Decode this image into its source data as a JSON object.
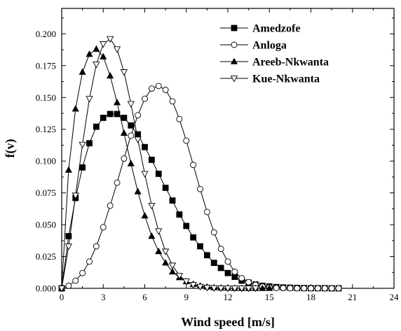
{
  "chart_data": {
    "type": "line",
    "xlabel": "Wind speed [m/s]",
    "ylabel": "f(v)",
    "xlim": [
      0,
      24
    ],
    "ylim": [
      0,
      0.22
    ],
    "xticks": [
      "0",
      "3",
      "6",
      "9",
      "12",
      "15",
      "18",
      "21",
      "24"
    ],
    "yticks": [
      "0.000",
      "0.025",
      "0.050",
      "0.075",
      "0.100",
      "0.125",
      "0.150",
      "0.175",
      "0.200"
    ],
    "legend_position": "top-right",
    "grid": false,
    "colors": {
      "line": "#000000",
      "marker": "#000000"
    },
    "series": [
      {
        "name": "Amedzofe",
        "marker": "filled-square",
        "x": [
          0,
          0.5,
          1,
          1.5,
          2,
          2.5,
          3,
          3.5,
          4,
          4.5,
          5,
          5.5,
          6,
          6.5,
          7,
          7.5,
          8,
          8.5,
          9,
          9.5,
          10,
          10.5,
          11,
          11.5,
          12,
          12.5,
          13,
          13.5,
          14,
          14.5,
          15,
          15.5,
          16,
          16.5,
          17,
          17.5,
          18,
          18.5,
          19,
          19.5,
          20
        ],
        "y": [
          0,
          0.041,
          0.071,
          0.095,
          0.114,
          0.127,
          0.134,
          0.137,
          0.137,
          0.134,
          0.128,
          0.121,
          0.111,
          0.101,
          0.09,
          0.079,
          0.069,
          0.058,
          0.049,
          0.04,
          0.033,
          0.026,
          0.02,
          0.016,
          0.012,
          0.009,
          0.006,
          0.0045,
          0.003,
          0.002,
          0.0015,
          0.001,
          0.0007,
          0.0005,
          0.0003,
          0.0002,
          0.0001,
          0.0001,
          0.0001,
          0,
          0
        ]
      },
      {
        "name": "Anloga",
        "marker": "open-circle",
        "x": [
          0,
          0.5,
          1,
          1.5,
          2,
          2.5,
          3,
          3.5,
          4,
          4.5,
          5,
          5.5,
          6,
          6.5,
          7,
          7.5,
          8,
          8.5,
          9,
          9.5,
          10,
          10.5,
          11,
          11.5,
          12,
          12.5,
          13,
          13.5,
          14,
          14.5,
          15,
          15.5,
          16,
          16.5,
          17,
          17.5,
          18,
          18.5,
          19,
          19.5,
          20
        ],
        "y": [
          0,
          0.002,
          0.006,
          0.012,
          0.021,
          0.033,
          0.048,
          0.065,
          0.083,
          0.102,
          0.12,
          0.136,
          0.149,
          0.157,
          0.159,
          0.156,
          0.147,
          0.133,
          0.116,
          0.097,
          0.078,
          0.06,
          0.044,
          0.031,
          0.021,
          0.013,
          0.008,
          0.0048,
          0.0027,
          0.0014,
          0.0007,
          0.0003,
          0.0002,
          0.0001,
          0,
          0,
          0,
          0,
          0,
          0,
          0
        ]
      },
      {
        "name": "Areeb-Nkwanta",
        "marker": "filled-triangle-up",
        "x": [
          0,
          0.5,
          1,
          1.5,
          2,
          2.5,
          3,
          3.5,
          4,
          4.5,
          5,
          5.5,
          6,
          6.5,
          7,
          7.5,
          8,
          8.5,
          9,
          9.5,
          10,
          10.5,
          11,
          11.5,
          12,
          12.5,
          13,
          13.5,
          14,
          14.5,
          15
        ],
        "y": [
          0,
          0.093,
          0.141,
          0.17,
          0.184,
          0.188,
          0.182,
          0.167,
          0.146,
          0.122,
          0.098,
          0.076,
          0.057,
          0.041,
          0.029,
          0.02,
          0.013,
          0.0085,
          0.0053,
          0.0032,
          0.0019,
          0.0011,
          0.0006,
          0.0003,
          0.0002,
          0.0001,
          0,
          0,
          0,
          0,
          0
        ]
      },
      {
        "name": "Kue-Nkwanta",
        "marker": "open-triangle-down",
        "x": [
          0,
          0.5,
          1,
          1.5,
          2,
          2.5,
          3,
          3.5,
          4,
          4.5,
          5,
          5.5,
          6,
          6.5,
          7,
          7.5,
          8,
          8.5,
          9,
          9.5,
          10,
          10.5,
          11,
          11.5,
          12,
          12.5,
          13,
          13.5,
          14
        ],
        "y": [
          0,
          0.033,
          0.073,
          0.113,
          0.149,
          0.176,
          0.192,
          0.196,
          0.188,
          0.17,
          0.145,
          0.117,
          0.09,
          0.065,
          0.045,
          0.029,
          0.018,
          0.01,
          0.0055,
          0.0028,
          0.0013,
          0.0006,
          0.0002,
          0.0001,
          0,
          0,
          0,
          0,
          0
        ]
      }
    ]
  }
}
